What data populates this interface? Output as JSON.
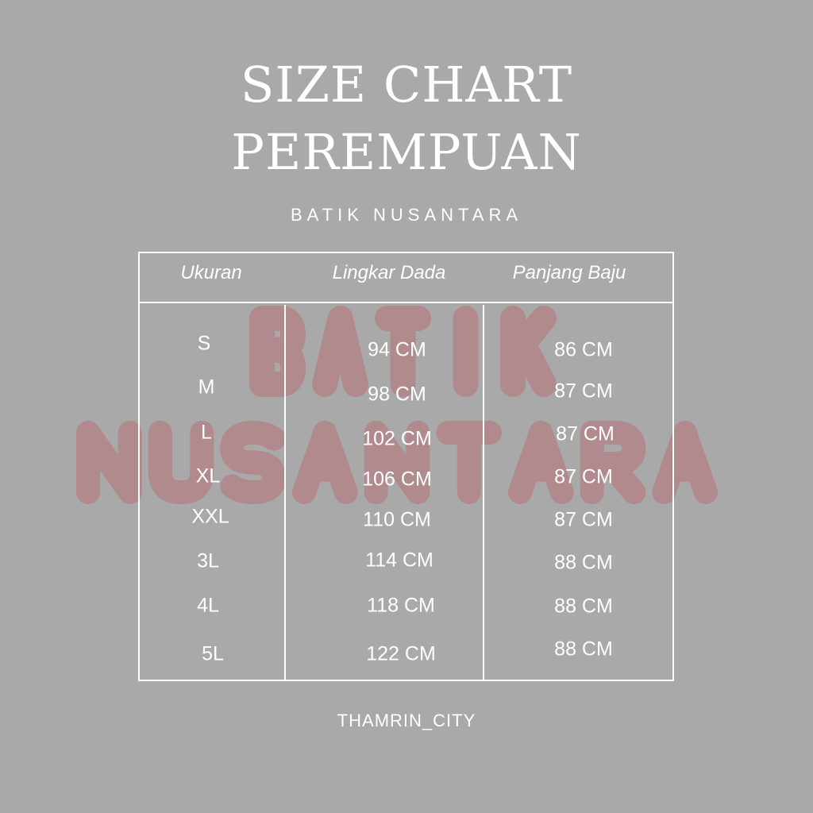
{
  "title_line1": "SIZE CHART",
  "title_line2": "PEREMPUAN",
  "subtitle": "BATIK NUSANTARA",
  "watermark": {
    "line1": "BATIK",
    "line2": "NUSANTARA",
    "color": "#b08a8c"
  },
  "background_color": "#a9a9a9",
  "table": {
    "headers": [
      "Ukuran",
      "Lingkar Dada",
      "Panjang Baju"
    ],
    "rows": [
      [
        "S",
        "94 CM",
        "86 CM"
      ],
      [
        "M",
        "98 CM",
        "87 CM"
      ],
      [
        "L",
        "102 CM",
        "87 CM"
      ],
      [
        "XL",
        "106 CM",
        "87 CM"
      ],
      [
        "XXL",
        "110 CM",
        "87 CM"
      ],
      [
        "3L",
        "114 CM",
        "88 CM"
      ],
      [
        "4L",
        "118 CM",
        "88 CM"
      ],
      [
        "5L",
        "122 CM",
        "88 CM"
      ]
    ]
  },
  "footer": "THAMRIN_CITY"
}
